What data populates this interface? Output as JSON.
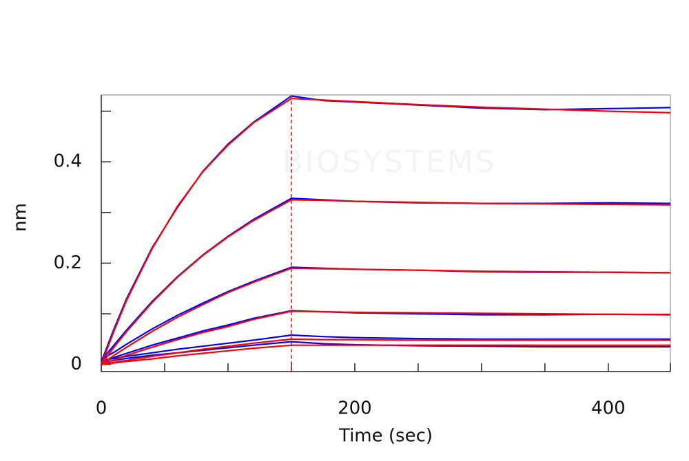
{
  "chart_data": {
    "type": "line",
    "xlabel": "Time (sec)",
    "ylabel": "nm",
    "watermark": "BIOSYSTEMS",
    "x": [
      0,
      10,
      20,
      40,
      60,
      80,
      100,
      120,
      150,
      175,
      200,
      250,
      300,
      350,
      400,
      449
    ],
    "series": [
      {
        "color": "#0000ff",
        "values": [
          0.005,
          0.07,
          0.13,
          0.23,
          0.31,
          0.381,
          0.435,
          0.478,
          0.53,
          0.521,
          0.518,
          0.512,
          0.506,
          0.503,
          0.505,
          0.507
        ]
      },
      {
        "color": "#0000ff",
        "values": [
          0.008,
          0.038,
          0.068,
          0.124,
          0.173,
          0.216,
          0.253,
          0.286,
          0.328,
          0.325,
          0.322,
          0.319,
          0.318,
          0.318,
          0.319,
          0.318
        ]
      },
      {
        "color": "#0000ff",
        "values": [
          0.01,
          0.024,
          0.04,
          0.07,
          0.097,
          0.121,
          0.144,
          0.164,
          0.192,
          0.19,
          0.188,
          0.186,
          0.183,
          0.182,
          0.182,
          0.181
        ]
      },
      {
        "color": "#0000ff",
        "values": [
          0.004,
          0.014,
          0.022,
          0.038,
          0.052,
          0.066,
          0.078,
          0.091,
          0.106,
          0.104,
          0.102,
          0.1,
          0.098,
          0.098,
          0.099,
          0.098
        ]
      },
      {
        "color": "#0000ff",
        "values": [
          0.008,
          0.012,
          0.016,
          0.023,
          0.03,
          0.036,
          0.042,
          0.048,
          0.058,
          0.055,
          0.053,
          0.051,
          0.05,
          0.05,
          0.05,
          0.05
        ]
      },
      {
        "color": "#0000ff",
        "values": [
          0.004,
          0.008,
          0.012,
          0.018,
          0.023,
          0.028,
          0.033,
          0.038,
          0.045,
          0.041,
          0.039,
          0.037,
          0.036,
          0.035,
          0.035,
          0.035
        ]
      },
      {
        "color": "#ff0000",
        "values": [
          0,
          0.066,
          0.127,
          0.228,
          0.312,
          0.38,
          0.433,
          0.477,
          0.525,
          0.522,
          0.519,
          0.513,
          0.508,
          0.504,
          0.5,
          0.497
        ]
      },
      {
        "color": "#ff0000",
        "values": [
          0,
          0.034,
          0.065,
          0.122,
          0.172,
          0.215,
          0.252,
          0.284,
          0.325,
          0.324,
          0.322,
          0.32,
          0.318,
          0.317,
          0.316,
          0.315
        ]
      },
      {
        "color": "#ff0000",
        "values": [
          0,
          0.018,
          0.034,
          0.065,
          0.093,
          0.118,
          0.142,
          0.162,
          0.19,
          0.189,
          0.188,
          0.186,
          0.184,
          0.183,
          0.182,
          0.181
        ]
      },
      {
        "color": "#ff0000",
        "values": [
          0,
          0.009,
          0.018,
          0.034,
          0.049,
          0.063,
          0.075,
          0.089,
          0.105,
          0.104,
          0.103,
          0.102,
          0.101,
          0.1,
          0.099,
          0.099
        ]
      },
      {
        "color": "#ff0000",
        "values": [
          0,
          0.004,
          0.008,
          0.016,
          0.023,
          0.03,
          0.036,
          0.042,
          0.05,
          0.049,
          0.049,
          0.048,
          0.048,
          0.048,
          0.048,
          0.048
        ]
      },
      {
        "color": "#ff0000",
        "values": [
          0,
          0.003,
          0.006,
          0.011,
          0.017,
          0.022,
          0.027,
          0.032,
          0.038,
          0.038,
          0.038,
          0.038,
          0.038,
          0.038,
          0.038,
          0.038
        ]
      }
    ],
    "dissociation_start": 150,
    "marker_color": "#ff0000",
    "xlim": [
      0,
      449
    ],
    "xticks": [
      0,
      200,
      400
    ],
    "xminor_ticks": [
      50,
      100,
      150,
      250,
      300,
      350,
      449
    ],
    "ylim": [
      -0.014,
      0.532
    ],
    "yticks": [
      0,
      0.2,
      0.4
    ],
    "yminor_ticks": [
      0.1,
      0.3,
      0.5
    ],
    "grid": false
  }
}
